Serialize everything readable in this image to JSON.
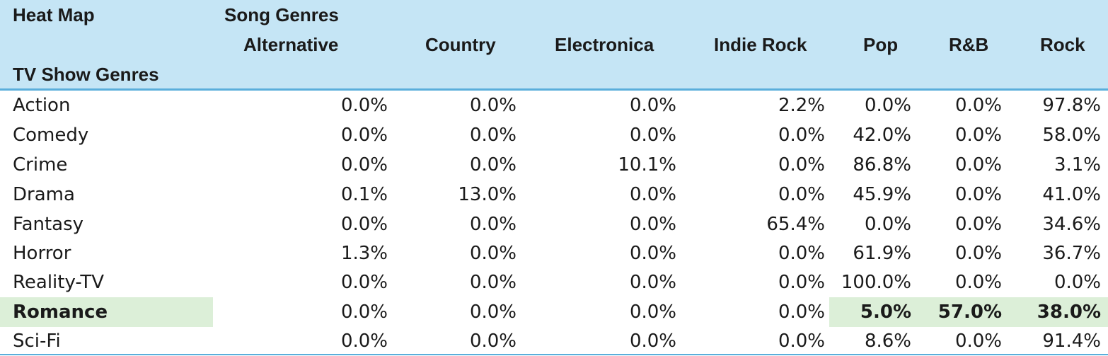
{
  "header": {
    "title": "Heat Map",
    "columns_group_label": "Song Genres",
    "rows_group_label": "TV Show Genres",
    "columns": [
      "Alternative",
      "Country",
      "Electronica",
      "Indie Rock",
      "Pop",
      "R&B",
      "Rock"
    ]
  },
  "rows": [
    {
      "label": "Action",
      "values": [
        "0.0%",
        "0.0%",
        "0.0%",
        "2.2%",
        "0.0%",
        "0.0%",
        "97.8%"
      ]
    },
    {
      "label": "Comedy",
      "values": [
        "0.0%",
        "0.0%",
        "0.0%",
        "0.0%",
        "42.0%",
        "0.0%",
        "58.0%"
      ]
    },
    {
      "label": "Crime",
      "values": [
        "0.0%",
        "0.0%",
        "10.1%",
        "0.0%",
        "86.8%",
        "0.0%",
        "3.1%"
      ]
    },
    {
      "label": "Drama",
      "values": [
        "0.1%",
        "13.0%",
        "0.0%",
        "0.0%",
        "45.9%",
        "0.0%",
        "41.0%"
      ]
    },
    {
      "label": "Fantasy",
      "values": [
        "0.0%",
        "0.0%",
        "0.0%",
        "65.4%",
        "0.0%",
        "0.0%",
        "34.6%"
      ]
    },
    {
      "label": "Horror",
      "values": [
        "1.3%",
        "0.0%",
        "0.0%",
        "0.0%",
        "61.9%",
        "0.0%",
        "36.7%"
      ]
    },
    {
      "label": "Reality-TV",
      "values": [
        "0.0%",
        "0.0%",
        "0.0%",
        "0.0%",
        "100.0%",
        "0.0%",
        "0.0%"
      ]
    },
    {
      "label": "Romance",
      "values": [
        "0.0%",
        "0.0%",
        "0.0%",
        "0.0%",
        "5.0%",
        "57.0%",
        "38.0%"
      ],
      "highlighted": true
    },
    {
      "label": "Sci-Fi",
      "values": [
        "0.0%",
        "0.0%",
        "0.0%",
        "0.0%",
        "8.6%",
        "0.0%",
        "91.4%"
      ]
    }
  ],
  "colors": {
    "header_background": "#c5e5f5",
    "header_border": "#5aaedb",
    "highlight": "#dcefd8"
  }
}
